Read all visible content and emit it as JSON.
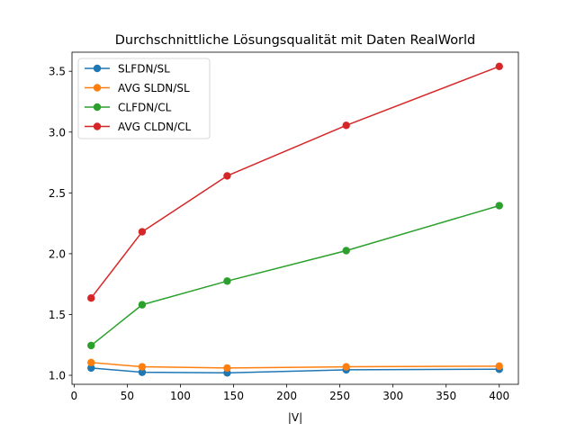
{
  "chart_data": {
    "type": "line",
    "title": "Durchschnittliche Lösungsqualität mit Daten RealWorld",
    "xlabel": "|V|",
    "ylabel": "",
    "xlim": [
      -2,
      418
    ],
    "ylim": [
      0.926,
      3.657
    ],
    "x_ticks": [
      0,
      50,
      100,
      150,
      200,
      250,
      300,
      350,
      400
    ],
    "y_ticks": [
      1.0,
      1.5,
      2.0,
      2.5,
      3.0,
      3.5
    ],
    "x_tick_labels": [
      "0",
      "50",
      "100",
      "150",
      "200",
      "250",
      "300",
      "350",
      "400"
    ],
    "y_tick_labels": [
      "1.0",
      "1.5",
      "2.0",
      "2.5",
      "3.0",
      "3.5"
    ],
    "grid": false,
    "legend_position": "top-left",
    "x": [
      16,
      64,
      144,
      256,
      400
    ],
    "series": [
      {
        "name": "SLFDN/SL",
        "color": "#1f77b4",
        "values": [
          1.06,
          1.025,
          1.02,
          1.045,
          1.05
        ]
      },
      {
        "name": "AVG SLDN/SL",
        "color": "#ff7f0e",
        "values": [
          1.105,
          1.07,
          1.06,
          1.07,
          1.075
        ]
      },
      {
        "name": "CLFDN/CL",
        "color": "#2ca02c",
        "values": [
          1.245,
          1.58,
          1.775,
          2.025,
          2.395
        ]
      },
      {
        "name": "AVG CLDN/CL",
        "color": "#d62728",
        "values": [
          1.635,
          2.18,
          2.64,
          3.055,
          3.54
        ]
      }
    ]
  }
}
